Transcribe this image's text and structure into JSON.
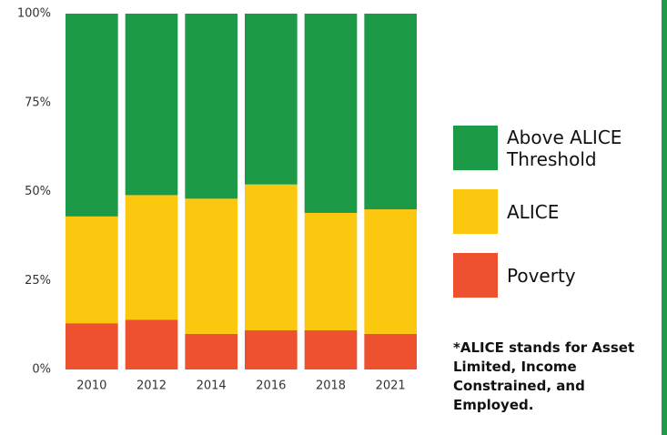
{
  "chart_data": {
    "type": "stacked_bar",
    "categories": [
      "2010",
      "2012",
      "2014",
      "2016",
      "2018",
      "2021"
    ],
    "series": [
      {
        "name": "Poverty",
        "color": "#ee5130",
        "values": [
          13,
          14,
          10,
          11,
          11,
          10
        ]
      },
      {
        "name": "ALICE",
        "color": "#fcc80f",
        "values": [
          30,
          35,
          38,
          41,
          33,
          35
        ]
      },
      {
        "name": "Above ALICE Threshold",
        "color": "#1d9a48",
        "values": [
          57,
          51,
          52,
          48,
          56,
          55
        ]
      }
    ],
    "ylim": [
      0,
      100
    ],
    "yticks": [
      {
        "value": 0,
        "label": "0%"
      },
      {
        "value": 25,
        "label": "25%"
      },
      {
        "value": 50,
        "label": "50%"
      },
      {
        "value": 75,
        "label": "75%"
      },
      {
        "value": 100,
        "label": "100%"
      }
    ],
    "note": "*ALICE stands for Asset Limited, Income Constrained, and Employed."
  }
}
